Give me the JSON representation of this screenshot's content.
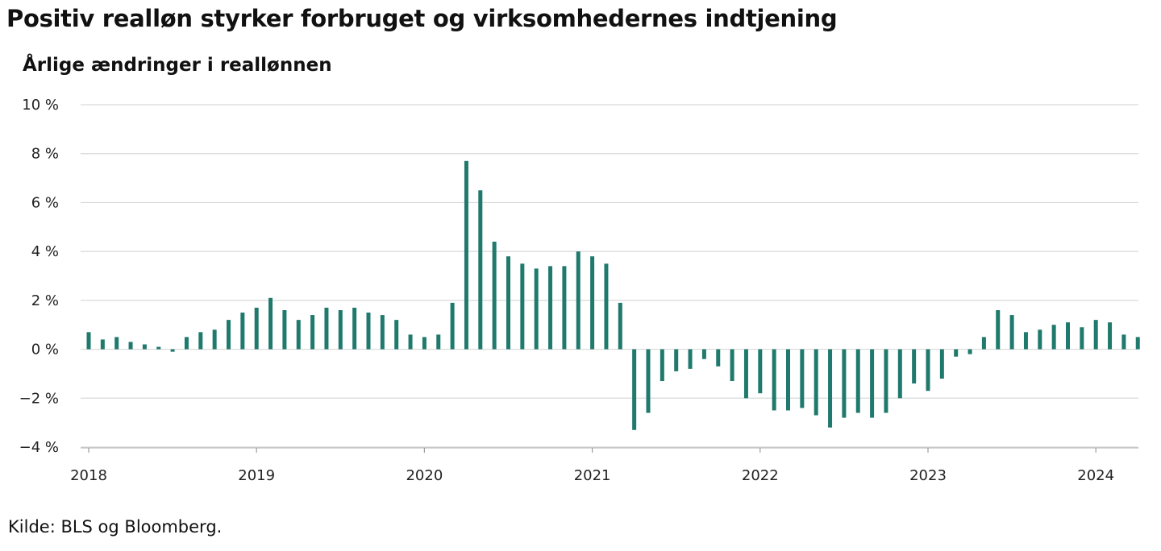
{
  "title": "Positiv realløn styrker forbruget og virksomhedernes indtjening",
  "subtitle": "Årlige ændringer i reallønnen",
  "source": "Kilde: BLS og Bloomberg.",
  "colors": {
    "bar": "#1f7a6d",
    "grid": "#d9d9d9",
    "zero_line": "#d9d9d9",
    "text": "#111111"
  },
  "chart_data": {
    "type": "bar",
    "title": "Årlige ændringer i reallønnen",
    "xlabel": "",
    "ylabel": "",
    "ylim": [
      -4,
      10
    ],
    "y_ticks": [
      10,
      8,
      6,
      4,
      2,
      0,
      -2,
      -4
    ],
    "y_tick_labels": [
      "10 %",
      "8 %",
      "6 %",
      "4 %",
      "2 %",
      "0 %",
      "−2 %",
      "−4 %"
    ],
    "x_tick_labels": [
      "2018",
      "2019",
      "2020",
      "2021",
      "2022",
      "2023",
      "2024"
    ],
    "start": "2018-01",
    "frequency": "monthly",
    "grid": true,
    "legend": "none",
    "values": [
      0.7,
      0.4,
      0.5,
      0.3,
      0.2,
      0.1,
      -0.1,
      0.5,
      0.7,
      0.8,
      1.2,
      1.5,
      1.7,
      2.1,
      1.6,
      1.2,
      1.4,
      1.7,
      1.6,
      1.7,
      1.5,
      1.4,
      1.2,
      0.6,
      0.5,
      0.6,
      1.9,
      7.7,
      6.5,
      4.4,
      3.8,
      3.5,
      3.3,
      3.4,
      3.4,
      4.0,
      3.8,
      3.5,
      1.9,
      -3.3,
      -2.6,
      -1.3,
      -0.9,
      -0.8,
      -0.4,
      -0.7,
      -1.3,
      -2.0,
      -1.8,
      -2.5,
      -2.5,
      -2.4,
      -2.7,
      -3.2,
      -2.8,
      -2.6,
      -2.8,
      -2.6,
      -2.0,
      -1.4,
      -1.7,
      -1.2,
      -0.3,
      -0.2,
      0.5,
      1.6,
      1.4,
      0.7,
      0.8,
      1.0,
      1.1,
      0.9,
      1.2,
      1.1,
      0.6,
      0.5
    ]
  }
}
